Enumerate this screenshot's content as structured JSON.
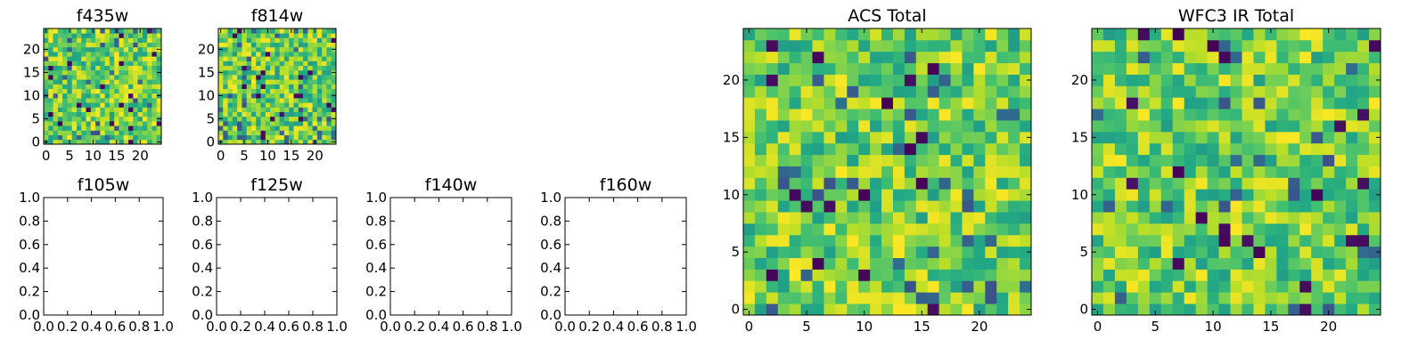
{
  "chart_data": [
    {
      "id": "f435w",
      "type": "heatmap",
      "title": "f435w",
      "colormap": "viridis",
      "shape": [
        25,
        25
      ],
      "seed": 11,
      "xlim": [
        -0.5,
        24.5
      ],
      "ylim": [
        -0.5,
        24.5
      ],
      "xticks": [
        "0",
        "5",
        "10",
        "15",
        "20"
      ],
      "yticks": [
        "0",
        "5",
        "10",
        "15",
        "20"
      ],
      "description_hidden": "noisy yellow-green field"
    },
    {
      "id": "f814w",
      "type": "heatmap",
      "title": "f814w",
      "colormap": "viridis",
      "shape": [
        25,
        25
      ],
      "seed": 23,
      "xlim": [
        -0.5,
        24.5
      ],
      "ylim": [
        -0.5,
        24.5
      ],
      "xticks": [
        "0",
        "5",
        "10",
        "15",
        "20"
      ],
      "yticks": [
        "0",
        "5",
        "10",
        "15",
        "20"
      ]
    },
    {
      "id": "f105w",
      "type": "empty",
      "title": "f105w",
      "xlim": [
        0,
        1
      ],
      "ylim": [
        0,
        1
      ],
      "xticks": [
        "0.0",
        "0.2",
        "0.4",
        "0.6",
        "0.8",
        "1.0"
      ],
      "yticks": [
        "0.0",
        "0.2",
        "0.4",
        "0.6",
        "0.8",
        "1.0"
      ]
    },
    {
      "id": "f125w",
      "type": "empty",
      "title": "f125w",
      "xlim": [
        0,
        1
      ],
      "ylim": [
        0,
        1
      ],
      "xticks": [
        "0.0",
        "0.2",
        "0.4",
        "0.6",
        "0.8",
        "1.0"
      ],
      "yticks": [
        "0.0",
        "0.2",
        "0.4",
        "0.6",
        "0.8",
        "1.0"
      ]
    },
    {
      "id": "f140w",
      "type": "empty",
      "title": "f140w",
      "xlim": [
        0,
        1
      ],
      "ylim": [
        0,
        1
      ],
      "xticks": [
        "0.0",
        "0.2",
        "0.4",
        "0.6",
        "0.8",
        "1.0"
      ],
      "yticks": [
        "0.0",
        "0.2",
        "0.4",
        "0.6",
        "0.8",
        "1.0"
      ]
    },
    {
      "id": "f160w",
      "type": "empty",
      "title": "f160w",
      "xlim": [
        0,
        1
      ],
      "ylim": [
        0,
        1
      ],
      "xticks": [
        "0.0",
        "0.2",
        "0.4",
        "0.6",
        "0.8",
        "1.0"
      ],
      "yticks": [
        "0.0",
        "0.2",
        "0.4",
        "0.6",
        "0.8",
        "1.0"
      ]
    },
    {
      "id": "acs-total",
      "type": "heatmap",
      "title": "ACS Total",
      "colormap": "viridis",
      "shape": [
        25,
        25
      ],
      "seed": 37,
      "xlim": [
        -0.5,
        24.5
      ],
      "ylim": [
        -0.5,
        24.5
      ],
      "xticks": [
        "0",
        "5",
        "10",
        "15",
        "20"
      ],
      "yticks": [
        "0",
        "5",
        "10",
        "15",
        "20"
      ]
    },
    {
      "id": "wfc3-ir-total",
      "type": "heatmap",
      "title": "WFC3 IR Total",
      "colormap": "viridis",
      "shape": [
        25,
        25
      ],
      "seed": 53,
      "xlim": [
        -0.5,
        24.5
      ],
      "ylim": [
        -0.5,
        24.5
      ],
      "xticks": [
        "0",
        "5",
        "10",
        "15",
        "20"
      ],
      "yticks": [
        "0",
        "5",
        "10",
        "15",
        "20"
      ]
    }
  ]
}
